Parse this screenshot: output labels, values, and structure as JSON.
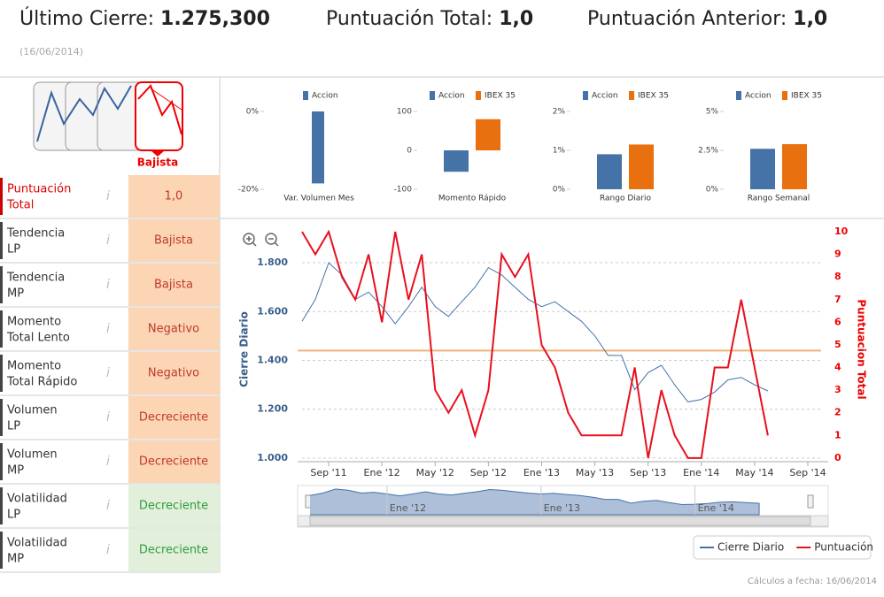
{
  "header": {
    "last_close_label": "Último Cierre:",
    "last_close": "1.275,300",
    "total_label": "Puntuación Total:",
    "total": "1,0",
    "prev_label": "Puntuación Anterior:",
    "prev": "1,0",
    "date": "(16/06/2014)"
  },
  "trend": {
    "label": "Bajista"
  },
  "table": {
    "rows": [
      {
        "label": [
          "Puntuación",
          "Total"
        ],
        "value": "1,0"
      },
      {
        "label": [
          "Tendencia",
          "LP"
        ],
        "value": "Bajista"
      },
      {
        "label": [
          "Tendencia",
          "MP"
        ],
        "value": "Bajista"
      },
      {
        "label": [
          "Momento",
          "Total Lento"
        ],
        "value": "Negativo"
      },
      {
        "label": [
          "Momento",
          "Total Rápido"
        ],
        "value": "Negativo"
      },
      {
        "label": [
          "Volumen",
          "LP"
        ],
        "value": "Decreciente"
      },
      {
        "label": [
          "Volumen",
          "MP"
        ],
        "value": "Decreciente"
      },
      {
        "label": [
          "Volatilidad",
          "LP"
        ],
        "value": "Decreciente"
      },
      {
        "label": [
          "Volatilidad",
          "MP"
        ],
        "value": "Decreciente"
      }
    ]
  },
  "chart_data": [
    {
      "type": "bar",
      "categories": [
        "Var. Volumen Mes"
      ],
      "series": [
        {
          "name": "Accion",
          "color": "#4572a7",
          "values": [
            -18.5
          ]
        }
      ],
      "ylim": [
        -20,
        0
      ],
      "yticks": [
        {
          "value": -20,
          "label": "-20%"
        },
        {
          "value": 0,
          "label": "0%"
        }
      ]
    },
    {
      "type": "bar",
      "categories": [
        "Momento Rápido"
      ],
      "series": [
        {
          "name": "Accion",
          "color": "#4572a7",
          "values": [
            -55
          ]
        },
        {
          "name": "IBEX 35",
          "color": "#e8700f",
          "values": [
            80
          ]
        }
      ],
      "ylim": [
        -100,
        100
      ],
      "yticks": [
        -100,
        0,
        100
      ]
    },
    {
      "type": "bar",
      "categories": [
        "Rango Diario"
      ],
      "series": [
        {
          "name": "Accion",
          "color": "#4572a7",
          "values": [
            0.9
          ]
        },
        {
          "name": "IBEX 35",
          "color": "#e8700f",
          "values": [
            1.15
          ]
        }
      ],
      "ylim": [
        0,
        2
      ],
      "yticks": [
        {
          "value": 0,
          "label": "0%"
        },
        {
          "value": 1,
          "label": "1%"
        },
        {
          "value": 2,
          "label": "2%"
        }
      ]
    },
    {
      "type": "bar",
      "categories": [
        "Rango Semanal"
      ],
      "series": [
        {
          "name": "Accion",
          "color": "#4572a7",
          "values": [
            2.6
          ]
        },
        {
          "name": "IBEX 35",
          "color": "#e8700f",
          "values": [
            2.9
          ]
        }
      ],
      "ylim": [
        0,
        5
      ],
      "yticks": [
        {
          "value": 0,
          "label": "0%"
        },
        {
          "value": 2.5,
          "label": "2.5%"
        },
        {
          "value": 5,
          "label": "5%"
        }
      ]
    },
    {
      "type": "line",
      "y_label": "Cierre Diario",
      "y2_label": "Puntuacion Total",
      "x": [
        "2011-07",
        "2011-08",
        "2011-09",
        "2011-10",
        "2011-11",
        "2011-12",
        "2012-01",
        "2012-02",
        "2012-03",
        "2012-04",
        "2012-05",
        "2012-06",
        "2012-07",
        "2012-08",
        "2012-09",
        "2012-10",
        "2012-11",
        "2012-12",
        "2013-01",
        "2013-02",
        "2013-03",
        "2013-04",
        "2013-05",
        "2013-06",
        "2013-07",
        "2013-08",
        "2013-09",
        "2013-10",
        "2013-11",
        "2013-12",
        "2014-01",
        "2014-02",
        "2014-03",
        "2014-04",
        "2014-05",
        "2014-06"
      ],
      "series": [
        {
          "name": "Cierre Diario",
          "color": "#4572a7",
          "values": [
            1560,
            1650,
            1800,
            1750,
            1650,
            1680,
            1620,
            1550,
            1620,
            1700,
            1620,
            1580,
            1640,
            1700,
            1780,
            1750,
            1700,
            1650,
            1620,
            1640,
            1600,
            1560,
            1500,
            1420,
            1420,
            1280,
            1350,
            1380,
            1300,
            1230,
            1240,
            1270,
            1320,
            1330,
            1300,
            1275
          ]
        },
        {
          "name": "Puntuación",
          "color": "#e8101e",
          "axis": "y2",
          "values": [
            10,
            9,
            10,
            8,
            7,
            9,
            6,
            10,
            7,
            9,
            3,
            2,
            3,
            1,
            3,
            9,
            8,
            9,
            5,
            4,
            2,
            1,
            1,
            1,
            1,
            4,
            0,
            3,
            1,
            0,
            0,
            4,
            4,
            7,
            4,
            1
          ]
        }
      ],
      "threshold": {
        "value": 4.75,
        "axis": "y2",
        "color": "#f0b27a"
      },
      "xlim": [
        "2011-07",
        "2014-10"
      ],
      "xticks": [
        {
          "value": "2011-09",
          "label": "Sep '11"
        },
        {
          "value": "2012-01",
          "label": "Ene '12"
        },
        {
          "value": "2012-05",
          "label": "May '12"
        },
        {
          "value": "2012-09",
          "label": "Sep '12"
        },
        {
          "value": "2013-01",
          "label": "Ene '13"
        },
        {
          "value": "2013-05",
          "label": "May '13"
        },
        {
          "value": "2013-09",
          "label": "Sep '13"
        },
        {
          "value": "2014-01",
          "label": "Ene '14"
        },
        {
          "value": "2014-05",
          "label": "May '14"
        },
        {
          "value": "2014-09",
          "label": "Sep '14"
        }
      ],
      "ylim": [
        985,
        1927
      ],
      "yticks": [
        {
          "value": 1000,
          "label": "1.000"
        },
        {
          "value": 1200,
          "label": "1.200"
        },
        {
          "value": 1400,
          "label": "1.400"
        },
        {
          "value": 1600,
          "label": "1.600"
        },
        {
          "value": 1800,
          "label": "1.800"
        }
      ],
      "y2lim": [
        -0.16,
        10
      ],
      "y2ticks": [
        0,
        1,
        2,
        3,
        4,
        5,
        6,
        7,
        8,
        9,
        10
      ],
      "grid": true,
      "navigator": {
        "xticks": [
          {
            "value": "2012-01",
            "label": "Ene '12"
          },
          {
            "value": "2013-01",
            "label": "Ene '13"
          },
          {
            "value": "2014-01",
            "label": "Ene '14"
          }
        ]
      }
    }
  ],
  "footer": "Cálculos a fecha: 16/06/2014"
}
